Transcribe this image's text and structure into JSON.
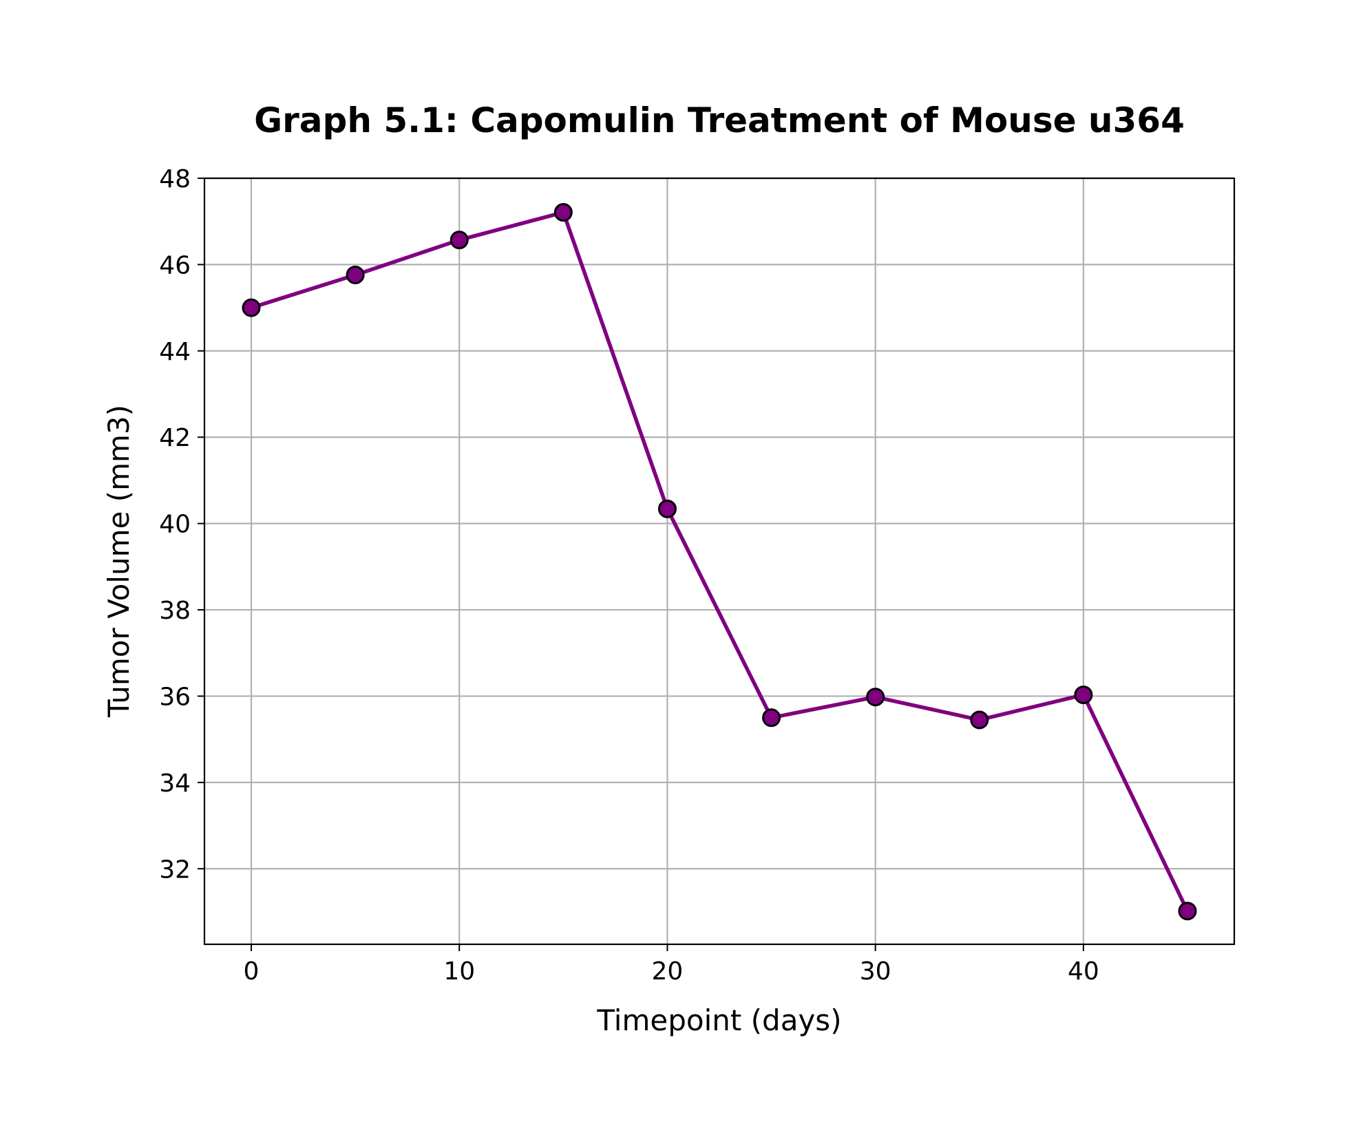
{
  "chart_data": {
    "type": "line",
    "title": "Graph 5.1: Capomulin Treatment of Mouse u364",
    "xlabel": "Timepoint (days)",
    "ylabel": "Tumor Volume (mm3)",
    "xlim": [
      -2.25,
      47.25
    ],
    "ylim": [
      30.25,
      48
    ],
    "xticks": [
      0,
      10,
      20,
      30,
      40
    ],
    "yticks": [
      32,
      34,
      36,
      38,
      40,
      42,
      44,
      46,
      48
    ],
    "grid": true,
    "legend": "none",
    "series": [
      {
        "color": "#800080",
        "marker_edge_color": "#000000",
        "x": [
          0,
          5,
          10,
          15,
          20,
          25,
          30,
          35,
          40,
          45
        ],
        "y": [
          45.0,
          45.76,
          46.57,
          47.21,
          40.34,
          35.5,
          35.98,
          35.45,
          36.03,
          31.02
        ]
      }
    ]
  }
}
